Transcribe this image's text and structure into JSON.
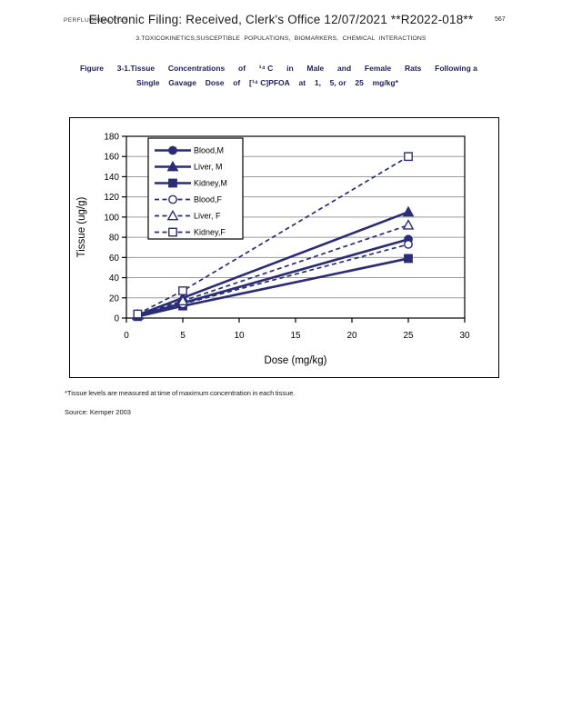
{
  "page": {
    "running_head": "PERFLUOROALKYLS",
    "stamp": "Electronic Filing: Received, Clerk's Office 12/07/2021 **R2022-018**",
    "page_number": "567",
    "section_header": "3.TOXICOKINETICS,SUSCEPTIBLE POPULATIONS, BIOMARKERS, CHEMICAL INTERACTIONS",
    "footnote": "*Tissue levels are measured at time of maximum concentration in each tissue.",
    "source": "Source:  Kemper 2003"
  },
  "caption": {
    "line1_words": [
      "Figure",
      "3-1.Tissue",
      "Concentrations",
      "of",
      "¹⁴ C",
      "in",
      "Male",
      "and",
      "Female",
      "Rats",
      "Following a"
    ],
    "line2_words": [
      "Single",
      "Gavage",
      "Dose",
      "of",
      "[¹⁴ C]PFOA",
      "at",
      "1,",
      "5, or",
      "25",
      "mg/kg*"
    ]
  },
  "chart_data": {
    "type": "line",
    "title": "",
    "xlabel": "Dose (mg/kg)",
    "ylabel": "Tissue (ug/g)",
    "x": [
      1,
      5,
      25
    ],
    "xlim": [
      0,
      30
    ],
    "ylim": [
      0,
      180
    ],
    "xticks": [
      0,
      5,
      10,
      15,
      20,
      25,
      30
    ],
    "yticks": [
      0,
      20,
      40,
      60,
      80,
      100,
      120,
      140,
      160,
      180
    ],
    "grid": true,
    "legend_position": "top-left",
    "colors": {
      "series": "#2a2d76",
      "grid": "#9a9a9a",
      "axis": "#000000"
    },
    "series": [
      {
        "name": "Blood,M",
        "marker": "circle",
        "filled": true,
        "line": "solid",
        "values": [
          2,
          15,
          78
        ]
      },
      {
        "name": "Liver, M",
        "marker": "triangle",
        "filled": true,
        "line": "solid",
        "values": [
          3,
          20,
          105
        ]
      },
      {
        "name": "Kidney,M",
        "marker": "square",
        "filled": true,
        "line": "solid",
        "values": [
          1.5,
          12,
          59
        ]
      },
      {
        "name": "Blood,F",
        "marker": "circle",
        "filled": false,
        "line": "dashed",
        "values": [
          2,
          14,
          73
        ]
      },
      {
        "name": "Liver, F",
        "marker": "triangle",
        "filled": false,
        "line": "dashed",
        "values": [
          3,
          17,
          92
        ]
      },
      {
        "name": "Kidney,F",
        "marker": "square",
        "filled": false,
        "line": "dashed",
        "values": [
          4,
          27,
          160
        ]
      }
    ]
  }
}
